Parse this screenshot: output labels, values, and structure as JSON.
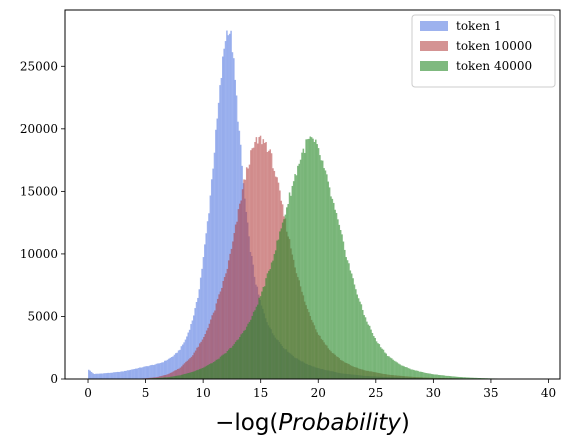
{
  "chart_data": {
    "type": "histogram",
    "title": "",
    "xlabel": "−log(Probability)",
    "xlabel_parts": {
      "prefix": "−log(",
      "italic": "Probability",
      "suffix": ")"
    },
    "ylabel": "",
    "xlim": [
      -2,
      41
    ],
    "ylim": [
      0,
      29500
    ],
    "bin_width": 0.12,
    "xticks": [
      0,
      5,
      10,
      15,
      20,
      25,
      30,
      35,
      40
    ],
    "yticks": [
      0,
      5000,
      10000,
      15000,
      20000,
      25000
    ],
    "grid": false,
    "legend_position": "top-right",
    "series": [
      {
        "name": "token 1",
        "color": "#4c72e0",
        "alpha": 0.55,
        "points": [
          [
            0,
            800
          ],
          [
            0.5,
            400
          ],
          [
            1,
            430
          ],
          [
            2,
            500
          ],
          [
            3,
            600
          ],
          [
            4,
            800
          ],
          [
            5,
            1000
          ],
          [
            6,
            1200
          ],
          [
            6.5,
            1350
          ],
          [
            7,
            1600
          ],
          [
            7.5,
            1900
          ],
          [
            8,
            2400
          ],
          [
            8.5,
            3200
          ],
          [
            9,
            4500
          ],
          [
            9.5,
            6300
          ],
          [
            10,
            9500
          ],
          [
            10.5,
            13500
          ],
          [
            11,
            18500
          ],
          [
            11.5,
            23500
          ],
          [
            11.9,
            27200
          ],
          [
            12.2,
            28200
          ],
          [
            12.5,
            27000
          ],
          [
            12.8,
            23500
          ],
          [
            13.2,
            19000
          ],
          [
            13.6,
            14500
          ],
          [
            14,
            11000
          ],
          [
            14.5,
            8000
          ],
          [
            15,
            6000
          ],
          [
            15.5,
            4700
          ],
          [
            16,
            3700
          ],
          [
            17,
            2500
          ],
          [
            18,
            1700
          ],
          [
            19,
            1200
          ],
          [
            20,
            850
          ],
          [
            22,
            450
          ],
          [
            24,
            250
          ],
          [
            26,
            150
          ],
          [
            28,
            90
          ],
          [
            30,
            50
          ],
          [
            33,
            20
          ],
          [
            36,
            0
          ]
        ]
      },
      {
        "name": "token 10000",
        "color": "#b03a3a",
        "alpha": 0.55,
        "points": [
          [
            4,
            0
          ],
          [
            5,
            60
          ],
          [
            6,
            150
          ],
          [
            7,
            400
          ],
          [
            8,
            900
          ],
          [
            9,
            1800
          ],
          [
            10,
            3200
          ],
          [
            11,
            5500
          ],
          [
            12,
            8500
          ],
          [
            12.5,
            10500
          ],
          [
            13,
            13000
          ],
          [
            13.5,
            15500
          ],
          [
            14,
            17500
          ],
          [
            14.5,
            18800
          ],
          [
            15,
            19200
          ],
          [
            15.5,
            18800
          ],
          [
            16,
            17500
          ],
          [
            16.5,
            15500
          ],
          [
            17,
            13200
          ],
          [
            17.5,
            11000
          ],
          [
            18,
            9000
          ],
          [
            18.5,
            7200
          ],
          [
            19,
            5700
          ],
          [
            20,
            3600
          ],
          [
            21,
            2300
          ],
          [
            22,
            1500
          ],
          [
            23,
            1000
          ],
          [
            24,
            700
          ],
          [
            26,
            350
          ],
          [
            28,
            180
          ],
          [
            30,
            90
          ],
          [
            33,
            30
          ],
          [
            35,
            0
          ]
        ]
      },
      {
        "name": "token 40000",
        "color": "#2a8a2a",
        "alpha": 0.6,
        "points": [
          [
            4,
            0
          ],
          [
            6,
            80
          ],
          [
            7,
            150
          ],
          [
            8,
            300
          ],
          [
            9,
            550
          ],
          [
            10,
            900
          ],
          [
            11,
            1400
          ],
          [
            12,
            2100
          ],
          [
            13,
            3100
          ],
          [
            14,
            4500
          ],
          [
            14.5,
            5500
          ],
          [
            15,
            6700
          ],
          [
            15.5,
            8000
          ],
          [
            16,
            9500
          ],
          [
            16.5,
            11100
          ],
          [
            17,
            12800
          ],
          [
            17.5,
            14600
          ],
          [
            18,
            16300
          ],
          [
            18.5,
            17800
          ],
          [
            19,
            18900
          ],
          [
            19.3,
            19200
          ],
          [
            19.8,
            18700
          ],
          [
            20.3,
            17500
          ],
          [
            20.8,
            15800
          ],
          [
            21.5,
            13300
          ],
          [
            22,
            11500
          ],
          [
            22.5,
            9700
          ],
          [
            23,
            8000
          ],
          [
            23.5,
            6500
          ],
          [
            24,
            5100
          ],
          [
            25,
            3100
          ],
          [
            26,
            1900
          ],
          [
            27,
            1200
          ],
          [
            28,
            800
          ],
          [
            29,
            550
          ],
          [
            30,
            380
          ],
          [
            31,
            270
          ],
          [
            32,
            180
          ],
          [
            33,
            120
          ],
          [
            34,
            80
          ],
          [
            35,
            50
          ],
          [
            37,
            20
          ],
          [
            39,
            0
          ]
        ]
      }
    ]
  }
}
